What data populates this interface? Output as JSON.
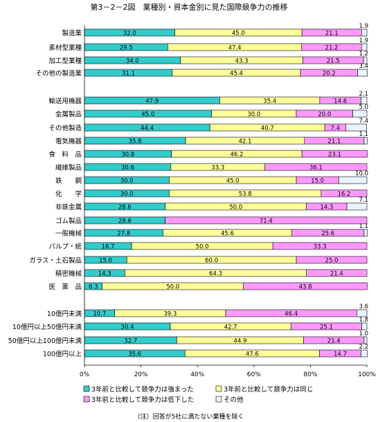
{
  "title": "第3－2－2図　業種別・資本金別に見た国際競争力の推移",
  "note": "（注）回答が5社に満たない業種を除く",
  "colors": {
    "strong": "#33CCCC",
    "same": "#FFFF99",
    "weak": "#FF99FF",
    "other": "#E8F4FF",
    "axis": "#000000"
  },
  "chart_data": {
    "type": "bar",
    "orientation": "horizontal",
    "stacked": true,
    "categories": [
      "製造業",
      "素材型業種",
      "加工型業種",
      "その他の製造業",
      "輸送用機器",
      "金属製品",
      "その他製造",
      "電気機器",
      "食　料　品",
      "繊維製品",
      "鉄　　鋼",
      "化　　学",
      "非鉄金属",
      "ゴム製品",
      "一般機械",
      "パルプ・紙",
      "ガラス・土石製品",
      "精密機械",
      "医　薬　品",
      "10億円未満",
      "10億円以上50億円未満",
      "50億円以上100億円未満",
      "100億円以上"
    ],
    "groups": [
      [
        0,
        3
      ],
      [
        4,
        18
      ],
      [
        19,
        22
      ]
    ],
    "series": [
      {
        "name": "3年前と比較して競争力は強まった",
        "color_key": "strong",
        "values": [
          32.0,
          29.5,
          34.0,
          31.1,
          47.9,
          45.0,
          44.4,
          35.8,
          30.8,
          30.6,
          30.0,
          30.0,
          28.6,
          28.6,
          27.8,
          16.7,
          15.0,
          14.3,
          6.3,
          10.7,
          30.4,
          32.7,
          35.6
        ]
      },
      {
        "name": "3年前と比較して競争力は同じ",
        "color_key": "same",
        "values": [
          45.0,
          47.4,
          43.3,
          45.4,
          35.4,
          30.0,
          40.7,
          42.1,
          46.2,
          33.3,
          45.0,
          53.8,
          50.0,
          0,
          45.6,
          50.0,
          60.0,
          64.3,
          50.0,
          39.3,
          42.7,
          44.9,
          47.6
        ]
      },
      {
        "name": "3年前と比較して競争力は低下した",
        "color_key": "weak",
        "values": [
          21.1,
          21.2,
          21.5,
          20.2,
          14.6,
          20.0,
          7.4,
          21.1,
          23.1,
          36.1,
          15.0,
          16.2,
          14.3,
          71.4,
          25.6,
          33.3,
          25.0,
          21.4,
          43.8,
          46.4,
          25.1,
          21.4,
          14.7
        ]
      },
      {
        "name": "その他",
        "color_key": "other",
        "values": [
          1.9,
          1.9,
          1.2,
          3.4,
          2.1,
          5.0,
          7.4,
          1.1,
          0,
          0,
          10.0,
          0,
          7.1,
          0,
          1.1,
          0,
          0,
          0,
          0,
          3.6,
          1.8,
          1.0,
          2.2
        ]
      }
    ],
    "labels": [
      [
        "32.0",
        "45.0",
        "21.1",
        "1.9"
      ],
      [
        "29.5",
        "47.4",
        "21.2",
        "1.9"
      ],
      [
        "34.0",
        "43.3",
        "21.5",
        "1.2"
      ],
      [
        "31.1",
        "45.4",
        "20.2",
        "3.4"
      ],
      [
        "47.9",
        "35.4",
        "14.6",
        "2.1"
      ],
      [
        "45.0",
        "30.0",
        "20.0",
        "5.0"
      ],
      [
        "44.4",
        "40.7",
        "7.4",
        "7.4"
      ],
      [
        "35.8",
        "42.1",
        "21.1",
        "1.1"
      ],
      [
        "30.8",
        "46.2",
        "23.1",
        ""
      ],
      [
        "30.6",
        "33.3",
        "36.1",
        ""
      ],
      [
        "30.0",
        "45.0",
        "15.0",
        "10.0"
      ],
      [
        "30.0",
        "53.8",
        "16.2",
        ""
      ],
      [
        "28.6",
        "50.0",
        "14.3",
        "7.1"
      ],
      [
        "28.6",
        "",
        "71.4",
        ""
      ],
      [
        "27.8",
        "45.6",
        "25.6",
        "1.1"
      ],
      [
        "16.7",
        "50.0",
        "33.3",
        ""
      ],
      [
        "15.0",
        "60.0",
        "25.0",
        ""
      ],
      [
        "14.3",
        "64.3",
        "21.4",
        ""
      ],
      [
        "6.3",
        "50.0",
        "43.8",
        ""
      ],
      [
        "10.7",
        "39.3",
        "46.4",
        "3.6"
      ],
      [
        "30.4",
        "42.7",
        "25.1",
        "1.8"
      ],
      [
        "32.7",
        "44.9",
        "21.4",
        "1.0"
      ],
      [
        "35.6",
        "47.6",
        "14.7",
        "2.2"
      ]
    ],
    "xticks": [
      "0%",
      "20%",
      "40%",
      "60%",
      "80%",
      "100%"
    ],
    "xlim": [
      0,
      100
    ],
    "legend_position": "bottom",
    "grid": false
  }
}
